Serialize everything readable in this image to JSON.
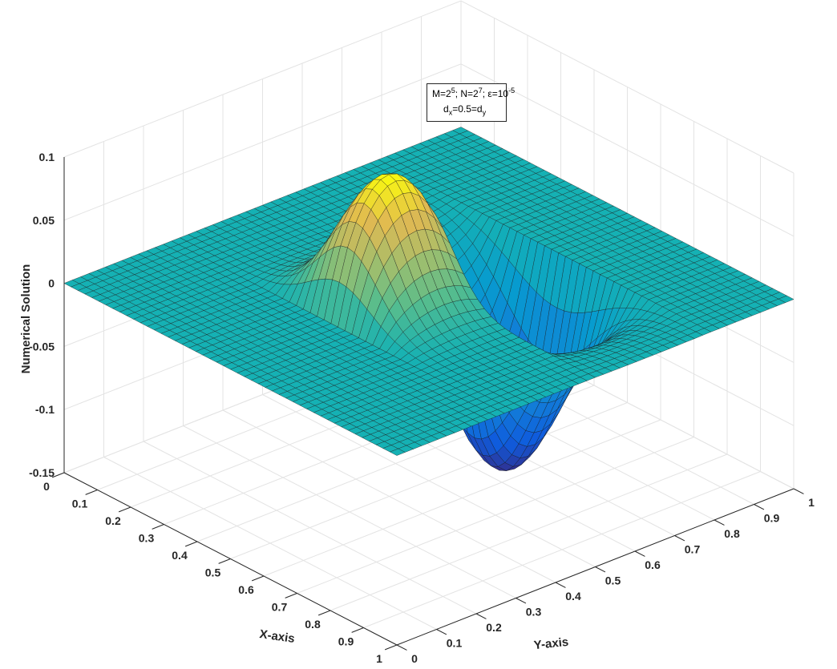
{
  "chart_data": {
    "type": "surface",
    "title": "",
    "xlabel": "X-axis",
    "ylabel": "Y-axis",
    "zlabel": "Numerical Solution",
    "xlim": [
      0,
      1
    ],
    "ylim": [
      0,
      1
    ],
    "zlim": [
      -0.15,
      0.1
    ],
    "x_ticks": [
      "0",
      "0.1",
      "0.2",
      "0.3",
      "0.4",
      "0.5",
      "0.6",
      "0.7",
      "0.8",
      "0.9",
      "1"
    ],
    "y_ticks": [
      "0",
      "0.1",
      "0.2",
      "0.3",
      "0.4",
      "0.5",
      "0.6",
      "0.7",
      "0.8",
      "0.9",
      "1"
    ],
    "z_ticks": [
      "-0.15",
      "-0.1",
      "-0.05",
      "0",
      "0.05",
      "0.1"
    ],
    "z_tick_values": [
      -0.15,
      -0.1,
      -0.05,
      0,
      0.05,
      0.1
    ],
    "grid": true,
    "colormap": "parula",
    "surface_summary": {
      "description_values": "Surface is ~0 on x<0.5 region boundaries; positive hump up to ~0.1 near x≈0.5, y≈0.25-0.5; negative trough down to ~-0.15 near x≈0.5, y≈0.5-0.75",
      "peak_value": 0.1,
      "trough_value": -0.15
    },
    "annotation": {
      "line1_parts": [
        "M=2",
        "5",
        "; N=2",
        "7",
        "; ε=10",
        "-5"
      ],
      "line2_parts": [
        "d",
        "x",
        "=0.5=d",
        "y"
      ]
    }
  }
}
